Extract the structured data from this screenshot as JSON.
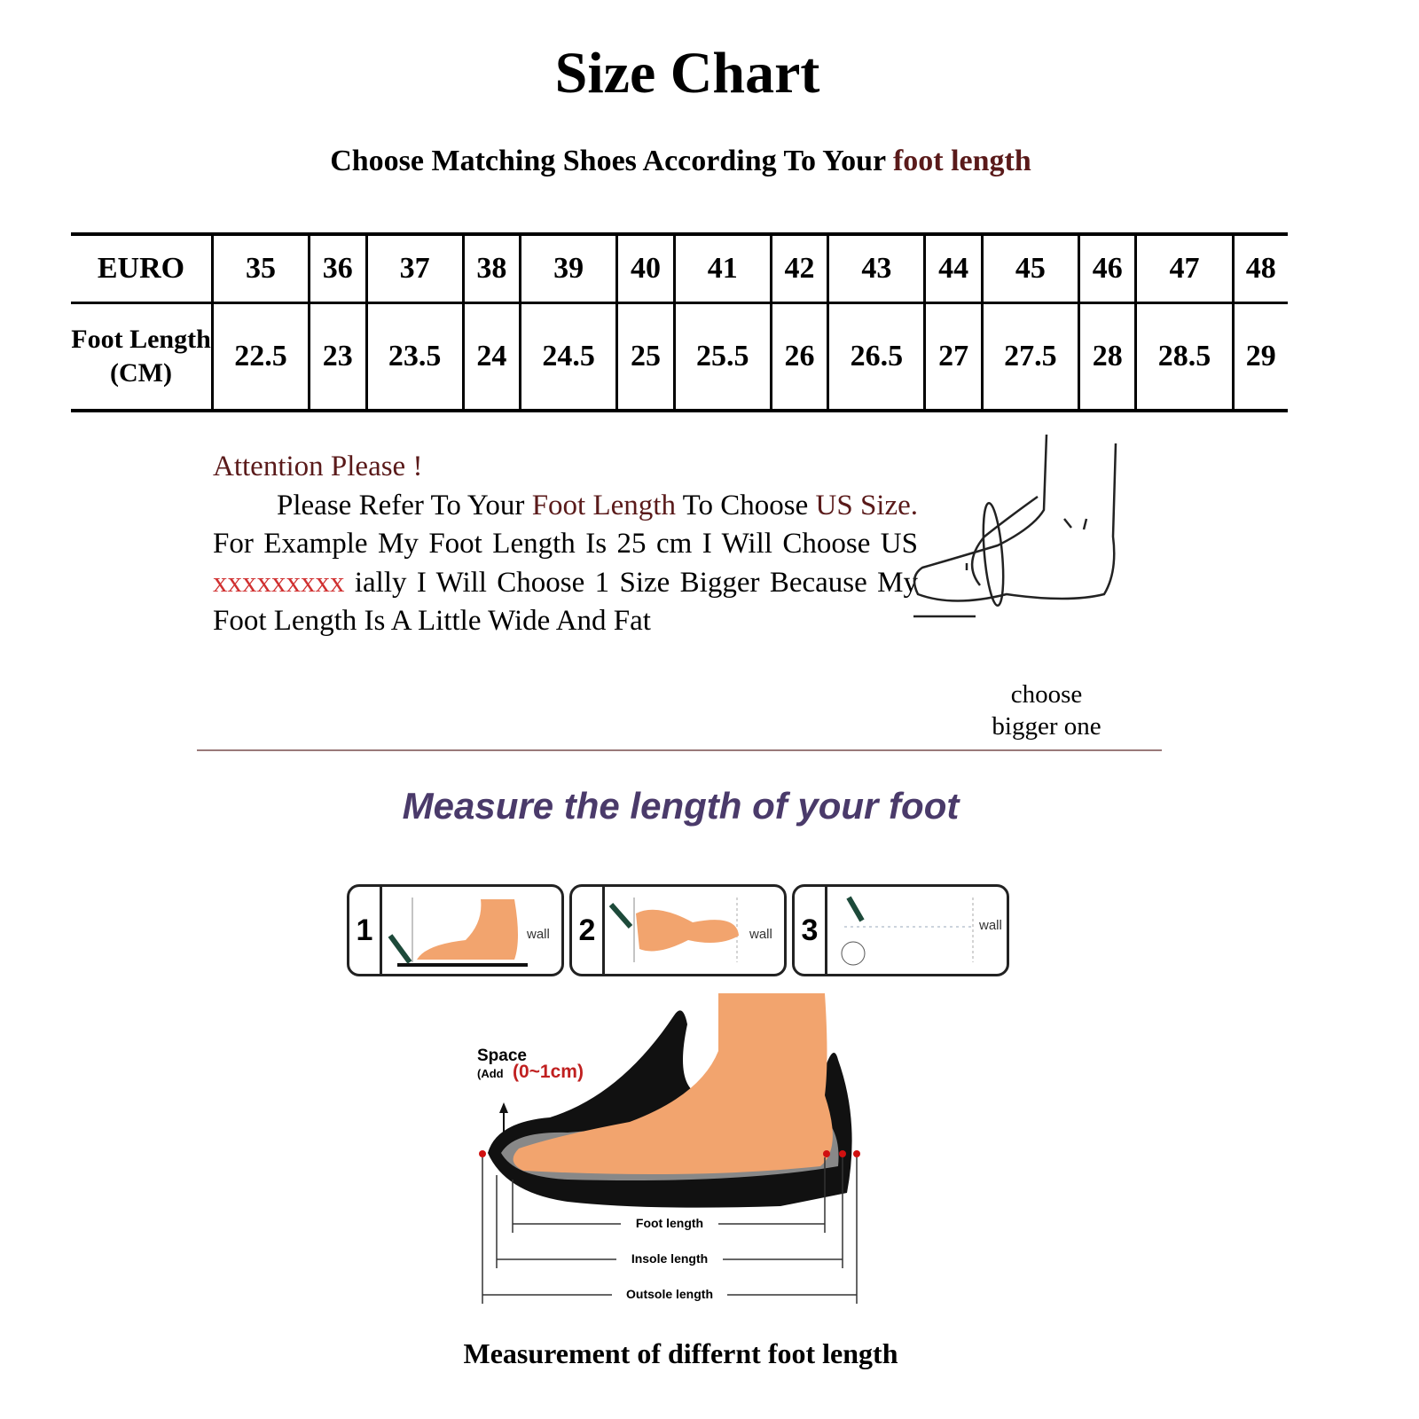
{
  "title": "Size Chart",
  "subtitle": {
    "prefix": "Choose Matching Shoes According To Your ",
    "accent": "foot length"
  },
  "table": {
    "row_headers": [
      "EURO",
      "Foot Length (CM)"
    ],
    "euro": [
      "35",
      "36",
      "37",
      "38",
      "39",
      "40",
      "41",
      "42",
      "43",
      "44",
      "45",
      "46",
      "47",
      "48"
    ],
    "foot_length_cm": [
      "22.5",
      "23",
      "23.5",
      "24",
      "24.5",
      "25",
      "25.5",
      "26",
      "26.5",
      "27",
      "27.5",
      "28",
      "28.5",
      "29"
    ]
  },
  "attention": {
    "heading": "Attention Please !",
    "p1": "Please Refer To Your ",
    "p1_accent": "Foot Length",
    "p2": " To Choose ",
    "p2_accent": "US Size.",
    "p3": " For Example My Foot Length Is 25 cm I Will Choose US ",
    "p3_redacted": "xxxxxxxxx",
    "p4": " ially I Will Choose 1 Size Bigger Because My Foot Length Is A Little Wide And Fat"
  },
  "choose_bigger": [
    "choose",
    "bigger one"
  ],
  "measure_heading": "Measure the length of your foot",
  "steps": [
    {
      "num": "1",
      "label": "wall"
    },
    {
      "num": "2",
      "label": "wall"
    },
    {
      "num": "3",
      "label": "wall"
    }
  ],
  "diagram": {
    "space_label": "Space",
    "space_add": "(Add",
    "space_range": "(0~1cm)",
    "foot_length": "Foot length",
    "insole_length": "Insole length",
    "outsole_length": "Outsole length"
  },
  "caption": "Measurement of differnt foot length",
  "colors": {
    "accent_text": "#5a1a1a",
    "heading_purple": "#4a3a6a",
    "skin": "#f2a46e",
    "redacted": "#d03030"
  }
}
